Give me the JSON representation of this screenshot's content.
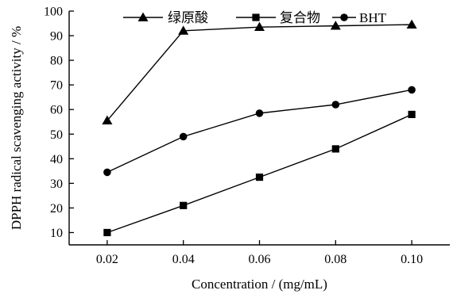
{
  "chart_data": {
    "type": "line",
    "xlabel": "Concentration / (mg/mL)",
    "ylabel": "DPPH radical scavenging activity / %",
    "x": [
      0.02,
      0.04,
      0.06,
      0.08,
      0.1
    ],
    "x_tick_labels": [
      "0.02",
      "0.04",
      "0.06",
      "0.08",
      "0.10"
    ],
    "y_ticks": [
      10,
      20,
      30,
      40,
      50,
      60,
      70,
      80,
      90,
      100
    ],
    "xlim": [
      0.01,
      0.11
    ],
    "ylim": [
      5,
      100
    ],
    "grid": false,
    "legend_position": "top",
    "series": [
      {
        "name": "绿原酸",
        "marker": "triangle",
        "values": [
          55.5,
          92.0,
          93.5,
          94.0,
          94.5
        ]
      },
      {
        "name": "复合物",
        "marker": "square",
        "values": [
          10.0,
          21.0,
          32.5,
          44.0,
          58.0
        ]
      },
      {
        "name": "BHT",
        "marker": "circle",
        "values": [
          34.5,
          49.0,
          58.5,
          62.0,
          68.0
        ]
      }
    ]
  }
}
